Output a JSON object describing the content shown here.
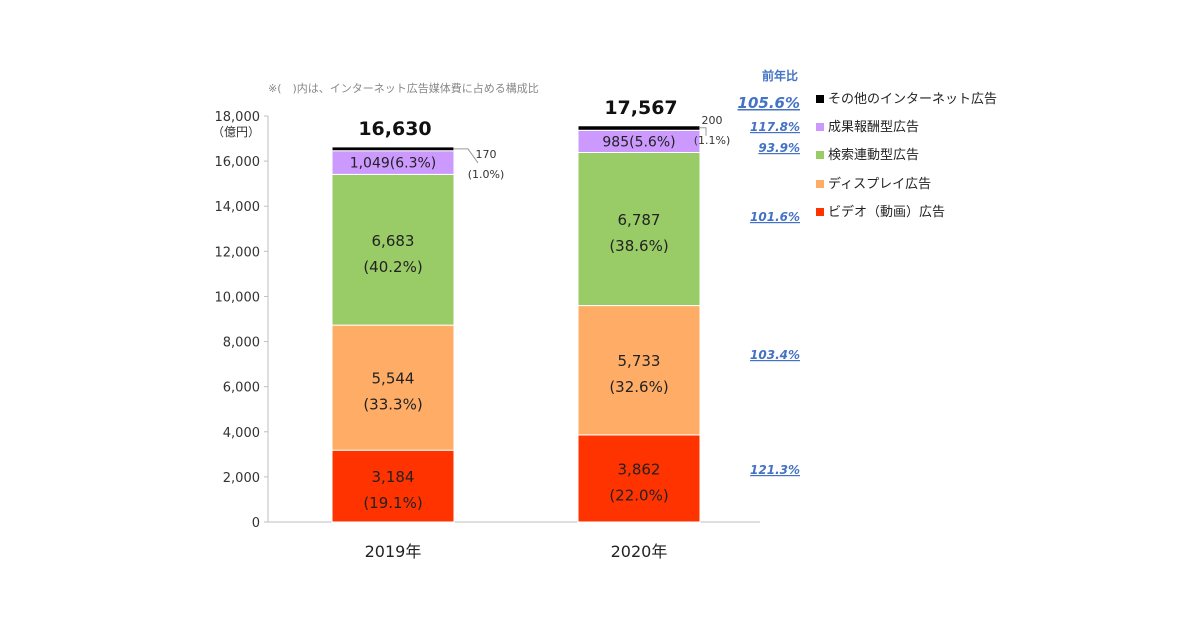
{
  "chart_data": {
    "type": "bar",
    "stacked": true,
    "note": "※(　)内は、インターネット広告媒体費に占める構成比",
    "y_unit": "（億円）",
    "ylim": [
      0,
      18000
    ],
    "y_ticks": [
      "0",
      "2,000",
      "4,000",
      "6,000",
      "8,000",
      "10,000",
      "12,000",
      "14,000",
      "16,000",
      "18,000"
    ],
    "categories": [
      "2019年",
      "2020年"
    ],
    "totals": [
      "16,630",
      "17,567"
    ],
    "series": [
      {
        "name": "ビデオ（動画）広告",
        "color": "#ff3300",
        "values": [
          3184,
          3862
        ],
        "labels": [
          "3,184",
          "3,862"
        ],
        "shares": [
          "(19.1%)",
          "(22.0%)"
        ],
        "yoy": "121.3%"
      },
      {
        "name": "ディスプレイ広告",
        "color": "#ffad66",
        "values": [
          5544,
          5733
        ],
        "labels": [
          "5,544",
          "5,733"
        ],
        "shares": [
          "(33.3%)",
          "(32.6%)"
        ],
        "yoy": "103.4%"
      },
      {
        "name": "検索連動型広告",
        "color": "#99cc66",
        "values": [
          6683,
          6787
        ],
        "labels": [
          "6,683",
          "6,787"
        ],
        "shares": [
          "(40.2%)",
          "(38.6%)"
        ],
        "yoy": "101.6%"
      },
      {
        "name": "成果報酬型広告",
        "color": "#cc99ff",
        "values": [
          1049,
          985
        ],
        "labels": [
          "1,049(6.3%)",
          "985(5.6%)"
        ],
        "shares": [
          "",
          ""
        ],
        "yoy": "93.9%"
      },
      {
        "name": "その他のインターネット広告",
        "color": "#000000",
        "values": [
          170,
          200
        ],
        "labels": [
          "170",
          "200"
        ],
        "shares": [
          "(1.0%)",
          "(1.1%)"
        ],
        "yoy": "117.8%"
      }
    ],
    "legend_title": "前年比",
    "total_yoy": "105.6%",
    "legend_position": "right",
    "grid": false
  }
}
